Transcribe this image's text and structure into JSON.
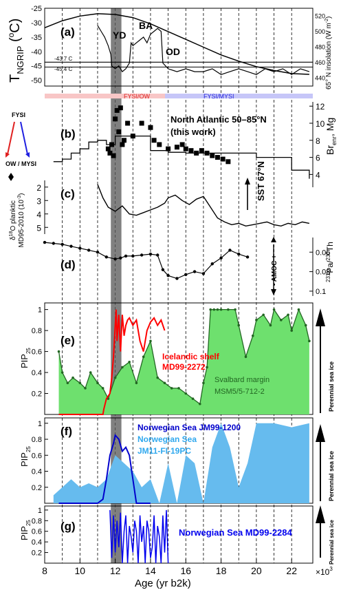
{
  "chart_data": [
    {
      "type": "line",
      "panel_label": "(a)",
      "ylabel_left": "T",
      "ylabel_left_sub": "NGRIP",
      "ylabel_left_unit": "(",
      "ylabel_left_deg": "o",
      "ylabel_left_unit2": "C)",
      "ylabel_right": "65° N insolation (W m",
      "ylabel_right_sup": "-2",
      "ylabel_right_end": ")",
      "ylim_left": [
        -52,
        -25
      ],
      "ylim_right": [
        430,
        530
      ],
      "yticks_left": [
        "-25",
        "-30",
        "-35",
        "-40",
        "-45",
        "-50"
      ],
      "yticks_right": [
        "440",
        "460",
        "480",
        "500",
        "520"
      ],
      "annotations": [
        "YD",
        "BA",
        "OD",
        "-43.7 C",
        "-45.4 C"
      ],
      "series": [
        {
          "role": "NGRIP temperature",
          "color": "#000000",
          "x": [
            11.0,
            11.2,
            11.4,
            11.6,
            11.75,
            11.8,
            12.0,
            12.2,
            12.4,
            12.6,
            12.8,
            12.9,
            13.0,
            13.2,
            13.4,
            13.6,
            13.8,
            14.0,
            14.2,
            14.4,
            14.6,
            14.7,
            15.0,
            15.5,
            16.0,
            16.5,
            17.0,
            17.5,
            18.0,
            18.5,
            19.0,
            19.5,
            20.0,
            20.5,
            21.0,
            21.5,
            22.0,
            22.5,
            23.0
          ],
          "y": [
            -31,
            -33,
            -35,
            -38,
            -41,
            -45,
            -46,
            -45,
            -47,
            -46,
            -44,
            -37,
            -38,
            -37,
            -36,
            -35,
            -37,
            -34,
            -33,
            -32,
            -33,
            -44,
            -46,
            -47,
            -46,
            -47,
            -47,
            -46,
            -48,
            -47,
            -46,
            -47,
            -48,
            -46,
            -47,
            -46,
            -48,
            -46,
            -47
          ]
        },
        {
          "role": "65N insolation",
          "color": "#000000",
          "x": [
            8,
            9,
            10,
            11,
            12,
            13,
            14,
            15,
            16,
            17,
            18,
            19,
            20,
            21,
            22,
            23
          ],
          "y": [
            505,
            514,
            520,
            523,
            522,
            518,
            510,
            500,
            490,
            480,
            470,
            462,
            455,
            450,
            446,
            445
          ]
        }
      ],
      "hlines": [
        -43.7,
        -45.4
      ]
    },
    {
      "type": "scatter",
      "panel_label": "(b)",
      "title": "North Atlantic 50–85°N",
      "subtitle": "(this work)",
      "ylabel_right": "Br",
      "ylabel_right_sub": "enr",
      "ylabel_right_unit": ", Mg",
      "ylim": [
        2.5,
        12.5
      ],
      "yticks": [
        "4",
        "6",
        "8",
        "10",
        "12"
      ],
      "band_left": "FYSI/OW",
      "band_right": "FYSI/MYSI",
      "arrow_top": "FYSI",
      "arrow_bottom": "OW / MYSI",
      "series": [
        {
          "role": "Br enrichment samples",
          "x": [
            11.6,
            11.7,
            11.8,
            11.9,
            12.0,
            12.1,
            12.2,
            12.3,
            12.4,
            12.5,
            12.7,
            13.0,
            13.5,
            14.0,
            14.2,
            14.5,
            15.0,
            15.5,
            15.8,
            16.0,
            16.3,
            16.6,
            16.9,
            17.2,
            17.5,
            17.8,
            18.1,
            18.4
          ],
          "y": [
            7.0,
            6.5,
            7.5,
            6.2,
            10.5,
            11.5,
            9.0,
            11.8,
            7.5,
            8.0,
            10.0,
            8.5,
            10.0,
            9.5,
            8.0,
            7.5,
            7.0,
            7.2,
            7.5,
            7.0,
            6.8,
            6.5,
            6.8,
            6.5,
            6.2,
            6.0,
            5.8,
            5.5
          ]
        },
        {
          "role": "binned mean",
          "x": [
            8.5,
            9,
            9.5,
            10,
            10.5,
            11,
            11.5,
            12,
            12.5,
            13,
            14,
            15,
            16,
            17,
            18,
            19,
            20,
            21,
            22,
            23
          ],
          "y": [
            5.5,
            5.8,
            6.5,
            7.0,
            7.8,
            8.0,
            7.5,
            8.5,
            8.5,
            8.5,
            6.8,
            6.6,
            6.5,
            6.5,
            6.5,
            6.5,
            6.0,
            6.0,
            4.5,
            3.5
          ]
        }
      ]
    },
    {
      "type": "line",
      "panel_label": "(c)",
      "ylabel_left": "δ",
      "ylabel_left_sup": "18",
      "ylabel_left_rest": "O planktic",
      "ylabel_left_2": "MD95-2010 (10",
      "ylabel_left_2_sup": "-3",
      "ylabel_left_2_end": ")",
      "ylim": [
        5.5,
        1.5
      ],
      "yticks": [
        "2",
        "3",
        "4",
        "5"
      ],
      "annotation": "SST 67°N",
      "series": [
        {
          "role": "d18O",
          "x": [
            11.0,
            11.3,
            11.6,
            12.0,
            12.4,
            12.8,
            13.2,
            13.6,
            14.0,
            14.4,
            14.8,
            15.0,
            15.4,
            15.8,
            16.2,
            16.6,
            17.0,
            17.4,
            17.8,
            18.2,
            18.6,
            19.0,
            19.4,
            19.8,
            20.2,
            20.6,
            21.0,
            21.4,
            21.8,
            22.2,
            22.6,
            23.0
          ],
          "y": [
            1.8,
            2.8,
            3.5,
            3.8,
            3.4,
            4.0,
            4.1,
            3.9,
            3.7,
            3.5,
            3.2,
            2.8,
            2.6,
            3.0,
            3.3,
            2.9,
            2.7,
            3.5,
            4.3,
            4.6,
            4.8,
            4.7,
            4.9,
            4.8,
            4.7,
            4.6,
            4.8,
            4.9,
            4.7,
            4.8,
            4.6,
            4.7
          ]
        }
      ]
    },
    {
      "type": "line",
      "panel_label": "(d)",
      "ylabel_right": "Pa",
      "ylabel_right_pre": "231",
      "ylabel_right_mid": "/",
      "ylabel_right_pre2": "230",
      "ylabel_right_end": "Th",
      "ylim": [
        0.105,
        0.045
      ],
      "yticks": [
        "0.06",
        "0.08",
        "0.1"
      ],
      "annotation": "- AMOC +",
      "series": [
        {
          "role": "Pa/Th",
          "x": [
            8.0,
            8.5,
            9.0,
            9.5,
            10.0,
            10.5,
            11.0,
            11.5,
            12.0,
            12.3,
            12.6,
            13.0,
            13.5,
            14.0,
            14.4,
            14.7,
            15.0,
            15.5,
            16.0,
            16.5,
            17.0,
            17.5,
            18.0,
            18.5,
            19.0,
            19.5
          ],
          "y": [
            0.05,
            0.051,
            0.052,
            0.054,
            0.056,
            0.058,
            0.06,
            0.065,
            0.067,
            0.066,
            0.064,
            0.064,
            0.063,
            0.062,
            0.063,
            0.078,
            0.084,
            0.087,
            0.083,
            0.08,
            0.082,
            0.072,
            0.066,
            0.058,
            0.062,
            0.065
          ]
        }
      ]
    },
    {
      "type": "area",
      "panel_label": "(e)",
      "ylabel_left": "PIP",
      "ylabel_left_sub": "25",
      "ylim": [
        0,
        1.05
      ],
      "yticks": [
        "0.2",
        "0.4",
        "0.6",
        "0.8",
        "1"
      ],
      "arrow_label": "Perennial sea ice",
      "series": [
        {
          "name": "Icelandic shelf MD99-2272",
          "name_1": "Icelandic shelf",
          "name_2": "MD99-2272",
          "color": "#ff0000",
          "x": [
            8.8,
            10.5,
            11.0,
            11.3,
            11.35,
            11.5,
            11.7,
            11.8,
            11.9,
            12.0,
            12.05,
            12.1,
            12.2,
            12.3,
            12.4,
            12.5,
            12.6,
            12.7,
            12.8,
            13.0,
            13.2,
            13.4,
            13.6,
            13.8,
            14.0,
            14.2,
            14.4,
            14.6,
            14.8
          ],
          "y": [
            0.0,
            0.0,
            0.0,
            0.0,
            0.05,
            0.15,
            0.2,
            0.35,
            0.55,
            0.85,
            1.0,
            0.7,
            0.95,
            0.6,
            0.95,
            0.75,
            0.85,
            0.9,
            0.92,
            0.85,
            0.9,
            0.7,
            0.6,
            0.8,
            0.88,
            0.92,
            0.85,
            0.9,
            0.8
          ]
        },
        {
          "name": "Svalbard margin MSM5/5-712-2",
          "name_1": "Svalbard margin",
          "name_2": "MSM5/5-712-2",
          "color": "#226622",
          "fill": "#6ee06e",
          "x": [
            8.8,
            9.0,
            9.3,
            9.6,
            10.0,
            10.3,
            10.6,
            11.0,
            11.3,
            11.6,
            12.0,
            12.4,
            12.8,
            13.2,
            13.6,
            14.0,
            14.4,
            14.8,
            15.2,
            15.6,
            16.0,
            16.4,
            16.8,
            17.0,
            17.2,
            17.4,
            17.6,
            17.8,
            18.0,
            18.4,
            18.8,
            19.0,
            19.4,
            19.8,
            20.0,
            20.4,
            20.8,
            21.0,
            21.4,
            21.8,
            22.0,
            22.4,
            22.8,
            23.0
          ],
          "y": [
            0.6,
            0.4,
            0.3,
            0.35,
            0.3,
            0.25,
            0.4,
            0.3,
            0.25,
            0.15,
            0.35,
            0.45,
            0.5,
            0.3,
            0.55,
            0.7,
            0.35,
            0.3,
            0.25,
            0.25,
            0.2,
            0.15,
            0.1,
            0.3,
            0.45,
            1.0,
            1.0,
            1.0,
            1.0,
            1.0,
            1.0,
            0.85,
            0.55,
            0.75,
            0.9,
            0.95,
            0.85,
            1.0,
            0.9,
            0.95,
            0.8,
            1.0,
            0.85,
            0.7
          ]
        }
      ]
    },
    {
      "type": "area",
      "panel_label": "(f)",
      "ylabel_left": "PIP",
      "ylabel_left_sub": "25",
      "ylim": [
        0,
        1.05
      ],
      "yticks": [
        "0.2",
        "0.4",
        "0.6",
        "0.8",
        "1"
      ],
      "arrow_label": "Perennial sea ice",
      "series": [
        {
          "name": "Norwegian Sea JM99-1200",
          "color": "#0000cc",
          "x": [
            8.8,
            10.5,
            11.0,
            11.3,
            11.5,
            11.7,
            11.9,
            12.0,
            12.2,
            12.4,
            12.6,
            12.8,
            13.0,
            13.2,
            13.6,
            14.0
          ],
          "y": [
            0.0,
            0.0,
            0.0,
            0.05,
            0.3,
            0.6,
            0.75,
            0.85,
            0.8,
            0.65,
            0.7,
            0.6,
            0.3,
            0.0,
            0.0,
            0.0
          ]
        },
        {
          "name": "Norwegian Sea JM11-FI-19PC",
          "name_1": "Norwegian Sea",
          "name_2": "JM11-FI-19PC",
          "color": "#66bbee",
          "x": [
            8.5,
            9.0,
            9.5,
            10.0,
            10.5,
            11.0,
            11.5,
            12.0,
            12.5,
            13.0,
            13.5,
            14.0,
            14.5,
            15.0,
            15.5,
            16.0,
            16.5,
            17.0,
            17.5,
            18.0,
            18.5,
            19.0,
            19.5,
            20.0,
            21.0,
            22.0,
            23.0
          ],
          "y": [
            0.1,
            0.2,
            0.3,
            0.2,
            0.25,
            0.2,
            0.3,
            0.6,
            0.5,
            0.4,
            0.2,
            0.3,
            0.0,
            0.5,
            0.0,
            0.6,
            0.5,
            0.0,
            0.7,
            1.0,
            0.7,
            0.2,
            0.5,
            1.0,
            1.0,
            0.95,
            1.0
          ]
        }
      ]
    },
    {
      "type": "line",
      "panel_label": "(g)",
      "ylabel_left": "PIP",
      "ylabel_left_sub": "25",
      "ylim": [
        0,
        1.05
      ],
      "yticks": [
        "0.2",
        "0.4",
        "0.6",
        "0.8",
        "1"
      ],
      "arrow_label": "Perennial sea ice",
      "series": [
        {
          "name": "Norwegian Sea MD99-2284",
          "color": "#0000ee",
          "x": [
            11.7,
            11.8,
            11.9,
            12.0,
            12.1,
            12.2,
            12.3,
            12.4,
            12.5,
            12.6,
            12.7,
            12.8,
            12.9,
            13.0,
            13.1,
            13.2,
            13.3,
            13.4,
            13.5,
            13.6,
            13.7,
            13.8,
            13.9,
            14.0,
            14.1,
            14.2,
            14.3,
            14.4,
            14.5,
            14.6,
            14.7,
            14.8,
            14.9,
            15.0
          ],
          "y": [
            1.0,
            0.1,
            0.9,
            0.2,
            0.8,
            0.3,
            0.95,
            0.0,
            0.6,
            0.9,
            0.0,
            0.7,
            0.5,
            0.2,
            0.8,
            0.6,
            0.0,
            0.9,
            0.4,
            0.7,
            0.0,
            0.8,
            0.6,
            0.1,
            0.3,
            0.9,
            0.0,
            0.7,
            0.5,
            0.0,
            0.9,
            0.2,
            1.0,
            0.0
          ]
        }
      ]
    }
  ],
  "x_axis": {
    "label": "Age (yr b2k)",
    "ticks": [
      "8",
      "10",
      "12",
      "14",
      "16",
      "18",
      "20",
      "22"
    ],
    "multiplier": "×10",
    "multiplier_sup": "3",
    "xlim": [
      8,
      23.2
    ],
    "gridlines": [
      9,
      10,
      11,
      12,
      13,
      14,
      15,
      16,
      17,
      18,
      19,
      20,
      21,
      22
    ],
    "shade_range": [
      11.75,
      12.35
    ]
  }
}
